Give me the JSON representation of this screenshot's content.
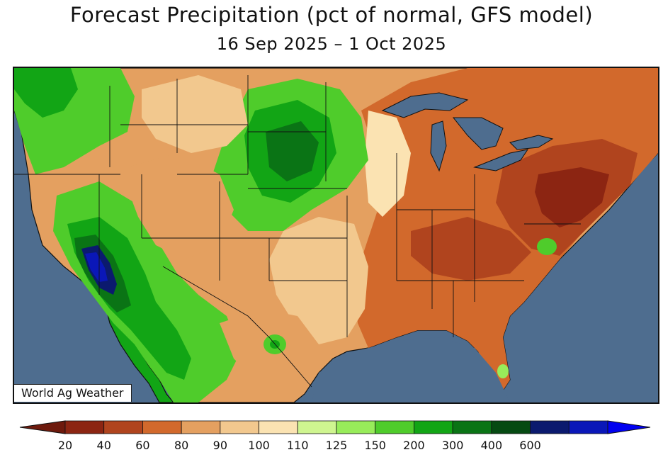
{
  "title": "Forecast Precipitation (pct of normal, GFS model)",
  "subtitle": "16 Sep 2025 – 1 Oct 2025",
  "watermark": "World Ag Weather",
  "colors": {
    "ocean": "#4e6d8f",
    "water": "#4e6d8f",
    "border": "#111111"
  },
  "legend": {
    "bins": [
      {
        "color": "#8c2512",
        "label": "20"
      },
      {
        "color": "#b0441e",
        "label": "40"
      },
      {
        "color": "#d2692c",
        "label": "60"
      },
      {
        "color": "#e4a060",
        "label": "80"
      },
      {
        "color": "#f2c88e",
        "label": "90"
      },
      {
        "color": "#fbe3b2",
        "label": "100"
      },
      {
        "color": "#cff590",
        "label": "110"
      },
      {
        "color": "#98ec5a",
        "label": "125"
      },
      {
        "color": "#4fcc2b",
        "label": "150"
      },
      {
        "color": "#12a515",
        "label": "200"
      },
      {
        "color": "#0a7415",
        "label": "300"
      },
      {
        "color": "#064a12",
        "label": "400"
      },
      {
        "color": "#0b1a6e",
        "label": "600"
      },
      {
        "color": "#0a17b8",
        "label": ""
      }
    ],
    "under_color": "#6e1a0d",
    "over_color": "#0000f0"
  }
}
